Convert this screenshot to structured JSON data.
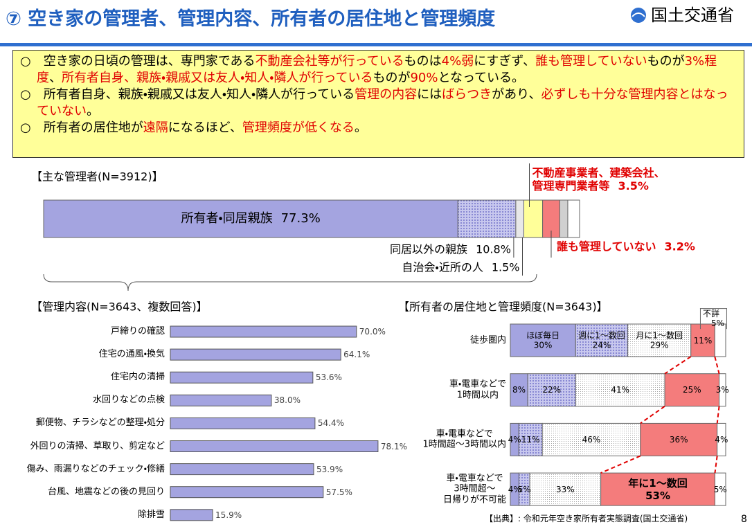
{
  "header": {
    "title": "⑦ 空き家の管理者、管理内容、所有者の居住地と管理頻度",
    "logo": "国土交通省"
  },
  "summary": [
    [
      {
        "text": "○　空き家の日頃の管理は、専門家である",
        "color": "#000000"
      },
      {
        "text": "不動産会社等が行っている",
        "color": "#e00000"
      },
      {
        "text": "ものは",
        "color": "#000000"
      },
      {
        "text": "4%弱",
        "color": "#e00000"
      },
      {
        "text": "にすぎず、",
        "color": "#000000"
      },
      {
        "text": "誰も管理していない",
        "color": "#e00000"
      },
      {
        "text": "ものが",
        "color": "#000000"
      },
      {
        "text": "3%程度",
        "color": "#e00000"
      },
      {
        "text": "、",
        "color": "#000000"
      },
      {
        "text": "所有者自身、親族・親戚又は友人・知人・隣人が行っている",
        "color": "#e00000"
      },
      {
        "text": "ものが",
        "color": "#000000"
      },
      {
        "text": "90%",
        "color": "#e00000"
      },
      {
        "text": "となっている。",
        "color": "#000000"
      }
    ],
    [
      {
        "text": "○　所有者自身、親族・親戚又は友人・知人・隣人が行っている",
        "color": "#000000"
      },
      {
        "text": "管理の内容",
        "color": "#e00000"
      },
      {
        "text": "には",
        "color": "#000000"
      },
      {
        "text": "ばらつき",
        "color": "#e00000"
      },
      {
        "text": "があり、",
        "color": "#000000"
      },
      {
        "text": "必ずしも十分な管理内容とはなっていない",
        "color": "#e00000"
      },
      {
        "text": "。",
        "color": "#000000"
      }
    ],
    [
      {
        "text": "○　所有者の居住地が",
        "color": "#000000"
      },
      {
        "text": "遠隔",
        "color": "#e00000"
      },
      {
        "text": "になるほど、",
        "color": "#000000"
      },
      {
        "text": "管理頻度が低くなる",
        "color": "#e00000"
      },
      {
        "text": "。",
        "color": "#000000"
      }
    ]
  ],
  "chart_data": [
    {
      "type": "stacked-bar-100",
      "title": "【主な管理者(N=3912)】",
      "categories": [
        "所有者・同居親族",
        "同居以外の親族",
        "自治会・近所の人",
        "不動産事業者、建築会社、\n管理専門業者等",
        "誰も管理していない",
        null,
        null
      ],
      "values": [
        77.3,
        10.8,
        1.5,
        3.5,
        3.2,
        1.5,
        2.2
      ],
      "value_labels": [
        "77.3%",
        "10.8%",
        "1.5%",
        "3.5%",
        "3.2%",
        null,
        null
      ],
      "colors": [
        "#a4a4e0",
        "#c8c8ee",
        "#e8e8e8",
        "#ffff99",
        "#f47c7c",
        "#d0d0d0",
        "#ffffff"
      ],
      "patterns": [
        null,
        "dots",
        null,
        null,
        null,
        null,
        null
      ]
    },
    {
      "type": "bar",
      "orientation": "horizontal",
      "title": "【管理内容(N=3643、複数回答)】",
      "categories": [
        "戸締りの確認",
        "住宅の通風・換気",
        "住宅内の清掃",
        "水回りなどの点検",
        "郵便物、チラシなどの整理・処分",
        "外回りの清掃、草取り、剪定など",
        "傷み、雨漏りなどのチェック・修繕",
        "台風、地震などの後の見回り",
        "除排雪"
      ],
      "values": [
        70.0,
        64.1,
        53.6,
        38.0,
        54.4,
        78.1,
        53.9,
        57.5,
        15.9
      ],
      "value_labels": [
        "70.0%",
        "64.1%",
        "53.6%",
        "38.0%",
        "54.4%",
        "78.1%",
        "53.9%",
        "57.5%",
        "15.9%"
      ],
      "color": "#a4a4e0"
    },
    {
      "type": "stacked-bar-100",
      "title": "【所有者の居住地と管理頻度(N=3643)】",
      "categories": [
        "徒歩圏内",
        "車・電車などで\n1時間以内",
        "車・電車などで\n1時間超～3時間以内",
        "車・電車などで\n3時間超～\n日帰りが不可能"
      ],
      "series": [
        {
          "name": "ほぼ毎日",
          "color": "#a4a4e0",
          "pattern": null,
          "values": [
            30,
            8,
            4,
            4
          ],
          "value_labels": [
            "30%",
            "8%",
            "4%",
            "4%"
          ]
        },
        {
          "name": "週に1～数回",
          "color": "#c8c8ee",
          "pattern": "dots",
          "values": [
            24,
            22,
            11,
            5
          ],
          "value_labels": [
            "24%",
            "22%",
            "11%",
            "5%"
          ]
        },
        {
          "name": "月に1～数回",
          "color": "#ffffff",
          "pattern": "fine",
          "values": [
            29,
            41,
            46,
            33
          ],
          "value_labels": [
            "29%",
            "41%",
            "46%",
            "33%"
          ]
        },
        {
          "name": "年に1～数回",
          "color": "#f47c7c",
          "pattern": null,
          "values": [
            11,
            25,
            36,
            53
          ],
          "value_labels": [
            "11%",
            "25%",
            "36%",
            "53%"
          ]
        },
        {
          "name": "不詳",
          "color": "#ffffff",
          "pattern": null,
          "values": [
            5,
            3,
            4,
            5
          ],
          "value_labels": [
            "5%",
            "3%",
            "4%",
            "5%"
          ]
        }
      ]
    }
  ],
  "source": "【出典】: 令和元年空き家所有者実態調査(国土交通省)",
  "page_number": "8"
}
